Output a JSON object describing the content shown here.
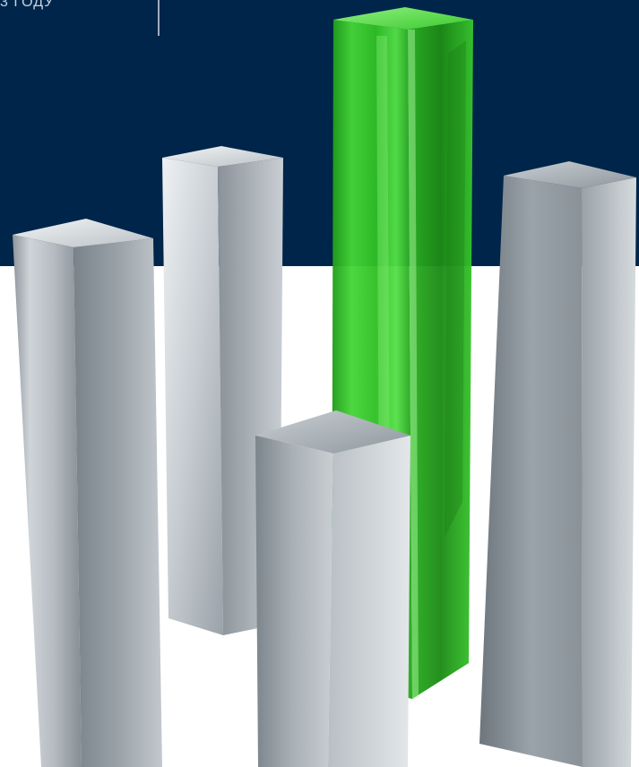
{
  "header": {
    "caption": "3 ГОДУ"
  },
  "colors": {
    "navy": "#00254a",
    "white": "#ffffff",
    "metal_light": "#dfe3e7",
    "metal_mid": "#a9b1b8",
    "metal_dark": "#6f7880",
    "glass_green": "#35c92b",
    "glass_green_dark": "#1e8f17",
    "caption_text": "#c8d2e2",
    "divider": "#9eacc0"
  },
  "scene": {
    "pillars": [
      {
        "name": "pillar-left",
        "material": "metal"
      },
      {
        "name": "pillar-back-left",
        "material": "metal"
      },
      {
        "name": "pillar-center-green",
        "material": "glass"
      },
      {
        "name": "pillar-front-center",
        "material": "metal"
      },
      {
        "name": "pillar-right",
        "material": "metal"
      }
    ]
  }
}
